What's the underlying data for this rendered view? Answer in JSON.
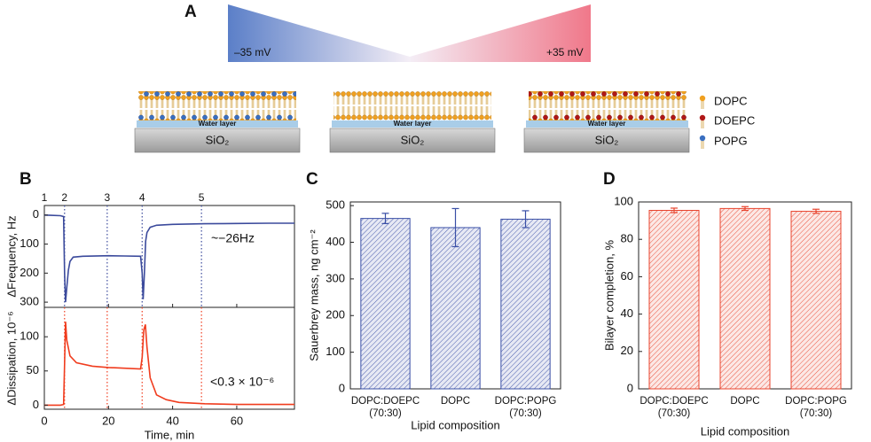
{
  "panel_a": {
    "label": "A",
    "left_potential": "–35 mV",
    "right_potential": "+35 mV",
    "water_label": "Water layer",
    "substrate": "SiO₂",
    "legend": [
      "DOPC",
      "DOEPC",
      "POPG"
    ]
  },
  "chart_data": [
    {
      "type": "line",
      "label": "B",
      "y_label": "ΔFrequency, Hz",
      "color": "#3b4a9c",
      "x": [
        0,
        2,
        5,
        6,
        6.3,
        6.6,
        7,
        7.5,
        8,
        9,
        12,
        20,
        25,
        30,
        30.5,
        30.8,
        31.2,
        31.6,
        32,
        33,
        35,
        40,
        50,
        60,
        70,
        78
      ],
      "values": [
        0,
        -1,
        -2,
        -5,
        -200,
        -300,
        -250,
        -190,
        -160,
        -145,
        -142,
        -140,
        -141,
        -142,
        -200,
        -290,
        -200,
        -90,
        -60,
        -42,
        -35,
        -32,
        -30,
        -29,
        -28,
        -28
      ],
      "xlim": [
        0,
        78
      ],
      "ylim": [
        -318,
        33
      ],
      "yticks": [
        0,
        {
          "value": -100,
          "label": "100"
        },
        {
          "value": -200,
          "label": "200"
        },
        {
          "value": -300,
          "label": "300"
        }
      ],
      "steps": {
        "labels": [
          "1",
          "2",
          "3",
          "4",
          "5"
        ],
        "x": [
          0,
          6.3,
          19.6,
          30.5,
          49
        ]
      },
      "annotation": "~−26Hz"
    },
    {
      "type": "line",
      "y_label": "ΔDissipation, 10⁻⁶",
      "x_label": "Time, min",
      "color": "#f03c1e",
      "x": [
        0,
        5,
        6,
        6.3,
        6.6,
        7,
        8,
        10,
        15,
        20,
        25,
        30,
        30.5,
        31,
        31.5,
        32,
        33,
        35,
        38,
        42,
        50,
        60,
        70,
        78
      ],
      "values": [
        0,
        0,
        1,
        60,
        122,
        95,
        72,
        62,
        57,
        55,
        54,
        53,
        70,
        110,
        118,
        85,
        40,
        15,
        8,
        4,
        2,
        1,
        1,
        1
      ],
      "xlim": [
        0,
        78
      ],
      "xticks": [
        0,
        20,
        40,
        60
      ],
      "ylim": [
        -6,
        143
      ],
      "yticks": [
        0,
        50,
        100
      ],
      "annotation": "<0.3 × 10⁻⁶"
    },
    {
      "type": "bar",
      "label": "C",
      "y_label": "Sauerbrey mass, ng cm⁻²",
      "x_label": "Lipid composition",
      "color": "#3a4fa6",
      "categories": [
        [
          "DOPC:DOEPC",
          "(70:30)"
        ],
        [
          "DOPC"
        ],
        [
          "DOPC:POPG",
          "(70:30)"
        ]
      ],
      "values": [
        465,
        440,
        463
      ],
      "errors": [
        14,
        52,
        23
      ],
      "ylim": [
        0,
        510
      ],
      "yticks": [
        0,
        100,
        200,
        300,
        400,
        500
      ]
    },
    {
      "type": "bar",
      "label": "D",
      "y_label": "Bilayer completion, %",
      "x_label": "Lipid composition",
      "color": "#e8432d",
      "categories": [
        [
          "DOPC:DOEPC",
          "(70:30)"
        ],
        [
          "DOPC"
        ],
        [
          "DOPC:POPG",
          "(70:30)"
        ]
      ],
      "values": [
        95.5,
        96.5,
        95
      ],
      "errors": [
        1.2,
        1,
        1.1
      ],
      "ylim": [
        0,
        100
      ],
      "yticks": [
        0,
        20,
        40,
        60,
        80,
        100
      ]
    }
  ]
}
